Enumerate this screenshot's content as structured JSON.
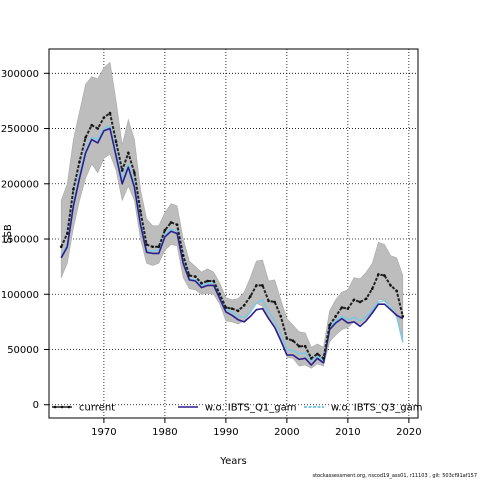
{
  "chart_data": {
    "type": "line",
    "xlabel": "Years",
    "ylabel": "SSB",
    "xlim": [
      1961,
      2021.5
    ],
    "ylim": [
      -12000,
      322000
    ],
    "x_ticks": [
      1970,
      1980,
      1990,
      2000,
      2010,
      2020
    ],
    "y_ticks": [
      0,
      50000,
      100000,
      150000,
      200000,
      250000,
      300000
    ],
    "y_tick_labels": [
      "0",
      "50000",
      "100000",
      "150000",
      "200000",
      "250000",
      "300000"
    ],
    "grid": true,
    "legend_placement": "bottom",
    "x": [
      1963,
      1964,
      1965,
      1966,
      1967,
      1968,
      1969,
      1970,
      1971,
      1972,
      1973,
      1974,
      1975,
      1976,
      1977,
      1978,
      1979,
      1980,
      1981,
      1982,
      1983,
      1984,
      1985,
      1986,
      1987,
      1988,
      1989,
      1990,
      1991,
      1992,
      1993,
      1994,
      1995,
      1996,
      1997,
      1998,
      1999,
      2000,
      2001,
      2002,
      2003,
      2004,
      2005,
      2006,
      2007,
      2008,
      2009,
      2010,
      2011,
      2012,
      2013,
      2014,
      2015,
      2016,
      2017,
      2018,
      2019
    ],
    "band": {
      "upper": [
        185000,
        200000,
        240000,
        265000,
        290000,
        297000,
        295000,
        305000,
        310000,
        275000,
        235000,
        258000,
        240000,
        195000,
        168000,
        162000,
        162000,
        174000,
        182000,
        180000,
        150000,
        130000,
        125000,
        120000,
        123000,
        120000,
        110000,
        97000,
        95000,
        96000,
        102000,
        115000,
        130000,
        131000,
        112000,
        113000,
        95000,
        78000,
        72000,
        66000,
        65000,
        52000,
        55000,
        52000,
        85000,
        95000,
        102000,
        104000,
        115000,
        114000,
        120000,
        128000,
        147000,
        145000,
        135000,
        133000,
        117000
      ],
      "lower": [
        115000,
        128000,
        160000,
        185000,
        205000,
        218000,
        210000,
        223000,
        227000,
        212000,
        185000,
        198000,
        185000,
        150000,
        128000,
        126000,
        128000,
        140000,
        145000,
        144000,
        115000,
        105000,
        104000,
        100000,
        101000,
        100000,
        91000,
        76000,
        75000,
        73000,
        76000,
        83000,
        92000,
        89000,
        78000,
        70000,
        60000,
        43000,
        42000,
        35000,
        36000,
        33000,
        37000,
        35000,
        57000,
        63000,
        68000,
        70000,
        75000,
        73000,
        78000,
        84000,
        95000,
        95000,
        90000,
        82000,
        56000
      ]
    },
    "series": [
      {
        "name": "current",
        "color": "#222222",
        "values": [
          143000,
          155000,
          195000,
          220000,
          242000,
          253000,
          250000,
          260000,
          264000,
          238000,
          212000,
          228000,
          210000,
          175000,
          145000,
          143000,
          143000,
          158000,
          165000,
          163000,
          135000,
          117000,
          116000,
          110000,
          112000,
          112000,
          100000,
          88000,
          87000,
          85000,
          90000,
          98000,
          108000,
          108000,
          94000,
          93000,
          80000,
          60000,
          58000,
          53000,
          53000,
          42000,
          46000,
          42000,
          72000,
          80000,
          88000,
          87000,
          95000,
          93000,
          96000,
          105000,
          118000,
          117000,
          108000,
          103000,
          80000
        ]
      },
      {
        "name": "w.o. IBTS_Q1_gam",
        "color": "#2c1e8c",
        "values": [
          133000,
          143000,
          180000,
          205000,
          228000,
          240000,
          237000,
          248000,
          250000,
          225000,
          200000,
          215000,
          197000,
          163000,
          138000,
          137000,
          137000,
          152000,
          157000,
          155000,
          128000,
          113000,
          112000,
          106000,
          108000,
          108000,
          96000,
          84000,
          81000,
          77000,
          75000,
          80000,
          86000,
          87000,
          78000,
          70000,
          58000,
          45000,
          45000,
          41000,
          42000,
          36000,
          42000,
          38000,
          68000,
          74000,
          78000,
          74000,
          75000,
          71000,
          76000,
          83000,
          91000,
          91000,
          86000,
          81000,
          78000
        ]
      },
      {
        "name": "w.o. IBTS_Q3_gam",
        "color": "#7ec8e3",
        "values": [
          134000,
          145000,
          182000,
          208000,
          230000,
          242000,
          240000,
          250000,
          252000,
          228000,
          204000,
          218000,
          200000,
          166000,
          140000,
          139000,
          140000,
          154000,
          159000,
          157000,
          130000,
          114000,
          113000,
          108000,
          110000,
          110000,
          98000,
          86000,
          84000,
          80000,
          79000,
          84000,
          92000,
          95000,
          84000,
          76000,
          65000,
          50000,
          49000,
          46000,
          47000,
          40000,
          44000,
          40000,
          70000,
          76000,
          80000,
          77000,
          79000,
          76000,
          80000,
          86000,
          93000,
          94000,
          88000,
          80000,
          57000
        ]
      }
    ]
  },
  "footer": "stockassessment.org, nscod19_ass01, r11103 , git: 503cf91af157"
}
